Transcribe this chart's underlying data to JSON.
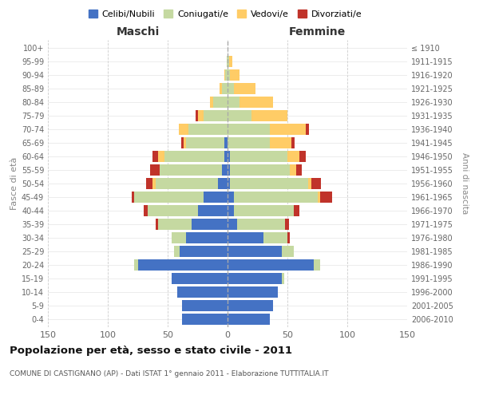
{
  "age_groups": [
    "0-4",
    "5-9",
    "10-14",
    "15-19",
    "20-24",
    "25-29",
    "30-34",
    "35-39",
    "40-44",
    "45-49",
    "50-54",
    "55-59",
    "60-64",
    "65-69",
    "70-74",
    "75-79",
    "80-84",
    "85-89",
    "90-94",
    "95-99",
    "100+"
  ],
  "birth_years": [
    "2006-2010",
    "2001-2005",
    "1996-2000",
    "1991-1995",
    "1986-1990",
    "1981-1985",
    "1976-1980",
    "1971-1975",
    "1966-1970",
    "1961-1965",
    "1956-1960",
    "1951-1955",
    "1946-1950",
    "1941-1945",
    "1936-1940",
    "1931-1935",
    "1926-1930",
    "1921-1925",
    "1916-1920",
    "1911-1915",
    "≤ 1910"
  ],
  "males": {
    "celibi": [
      38,
      38,
      42,
      47,
      75,
      40,
      35,
      30,
      25,
      20,
      8,
      5,
      3,
      3,
      0,
      0,
      0,
      0,
      0,
      0,
      0
    ],
    "coniugati": [
      0,
      0,
      0,
      0,
      3,
      5,
      12,
      28,
      42,
      58,
      52,
      52,
      50,
      32,
      33,
      20,
      12,
      5,
      2,
      1,
      0
    ],
    "vedovi": [
      0,
      0,
      0,
      0,
      0,
      0,
      0,
      0,
      0,
      0,
      3,
      0,
      5,
      2,
      8,
      5,
      3,
      2,
      1,
      0,
      0
    ],
    "divorziati": [
      0,
      0,
      0,
      0,
      0,
      0,
      0,
      2,
      3,
      2,
      5,
      8,
      5,
      2,
      0,
      2,
      0,
      0,
      0,
      0,
      0
    ]
  },
  "females": {
    "nubili": [
      35,
      38,
      42,
      45,
      72,
      45,
      30,
      8,
      5,
      5,
      2,
      2,
      2,
      0,
      0,
      0,
      0,
      0,
      0,
      0,
      0
    ],
    "coniugate": [
      0,
      0,
      0,
      2,
      5,
      10,
      20,
      40,
      50,
      70,
      65,
      50,
      48,
      35,
      35,
      20,
      10,
      5,
      2,
      1,
      0
    ],
    "vedove": [
      0,
      0,
      0,
      0,
      0,
      0,
      0,
      0,
      0,
      2,
      3,
      5,
      10,
      18,
      30,
      30,
      28,
      18,
      8,
      3,
      0
    ],
    "divorziate": [
      0,
      0,
      0,
      0,
      0,
      0,
      2,
      3,
      5,
      10,
      8,
      5,
      5,
      3,
      3,
      0,
      0,
      0,
      0,
      0,
      0
    ]
  },
  "colors": {
    "celibi": "#4472C4",
    "coniugati": "#C5D9A1",
    "vedovi": "#FFCC66",
    "divorziati": "#C0332A"
  },
  "title": "Popolazione per età, sesso e stato civile - 2011",
  "subtitle": "COMUNE DI CASTIGNANO (AP) - Dati ISTAT 1° gennaio 2011 - Elaborazione TUTTITALIA.IT",
  "xlabel_maschi": "Maschi",
  "xlabel_femmine": "Femmine",
  "ylabel_left": "Fasce di età",
  "ylabel_right": "Anni di nascita",
  "xlim": 150,
  "legend_labels": [
    "Celibi/Nubili",
    "Coniugati/e",
    "Vedovi/e",
    "Divorziati/e"
  ],
  "bg_color": "#FFFFFF"
}
